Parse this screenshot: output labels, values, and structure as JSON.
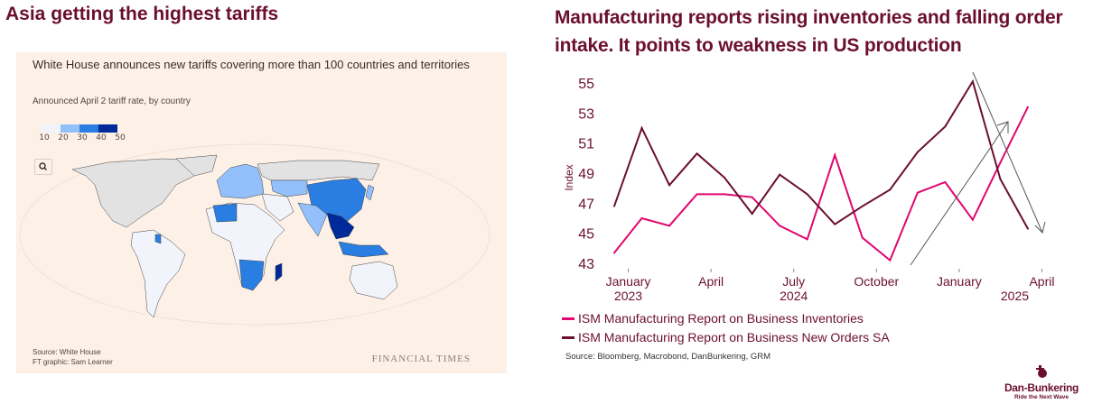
{
  "left_panel": {
    "heading": "Asia getting the highest tariffs",
    "ft_chart": {
      "title": "White House announces new tariffs covering more than 100 countries and territories",
      "subtitle": "Announced April 2 tariff rate, by country",
      "scale_ticks": [
        "10",
        "20",
        "30",
        "40",
        "50"
      ],
      "scale_colors": [
        "#f1f4fb",
        "#93c0fa",
        "#2a7de1",
        "#002a9a"
      ],
      "source_line1": "Source: White House",
      "source_line2": "FT graphic: Sam Learner",
      "brand": "FINANCIAL TIMES",
      "search_icon": "magnifier-icon",
      "background": "#fdf0e6"
    }
  },
  "right_panel": {
    "heading": "Manufacturing reports rising inventories and falling order intake. It points to weakness in US production",
    "source": "Source: Bloomberg, Macrobond, DanBunkering, GRM",
    "logo": {
      "name": "Dan-Bunkering",
      "tagline": "Ride the Next Wave"
    }
  },
  "chart_data": {
    "type": "line",
    "ylabel": "Index",
    "ylim": [
      43,
      55
    ],
    "yticks": [
      "43",
      "45",
      "47",
      "49",
      "51",
      "53",
      "55"
    ],
    "xticks": [
      {
        "month": "2024-01",
        "label": "January",
        "year": "2023"
      },
      {
        "month": "2024-04",
        "label": "April",
        "year": ""
      },
      {
        "month": "2024-07",
        "label": "July",
        "year": "2024"
      },
      {
        "month": "2024-10",
        "label": "October",
        "year": ""
      },
      {
        "month": "2025-01",
        "label": "January",
        "year": ""
      },
      {
        "month": "2025-04",
        "label": "April",
        "year": "2025"
      }
    ],
    "x": [
      "2023-12",
      "2024-01",
      "2024-02",
      "2024-03",
      "2024-04",
      "2024-05",
      "2024-06",
      "2024-07",
      "2024-08",
      "2024-09",
      "2024-10",
      "2024-11",
      "2024-12",
      "2025-01",
      "2025-02",
      "2025-03"
    ],
    "series": [
      {
        "name": "ISM Manufacturing Report on Business Inventories",
        "color": "#e0076e",
        "values": [
          43.7,
          46.0,
          45.5,
          47.6,
          47.6,
          47.4,
          45.5,
          44.6,
          50.2,
          44.7,
          43.2,
          47.7,
          48.4,
          45.9,
          49.7,
          53.4
        ]
      },
      {
        "name": "ISM Manufacturing Report on Business New Orders SA",
        "color": "#6b0f2e",
        "values": [
          46.8,
          52.0,
          48.2,
          50.3,
          48.7,
          46.3,
          48.9,
          47.6,
          45.6,
          46.8,
          47.9,
          50.4,
          52.1,
          55.1,
          48.6,
          45.3
        ]
      }
    ],
    "annotations": [
      "trend arrow up (inventories)",
      "trend arrow down (new orders)"
    ],
    "grid": false,
    "legend": "bottom-left"
  }
}
